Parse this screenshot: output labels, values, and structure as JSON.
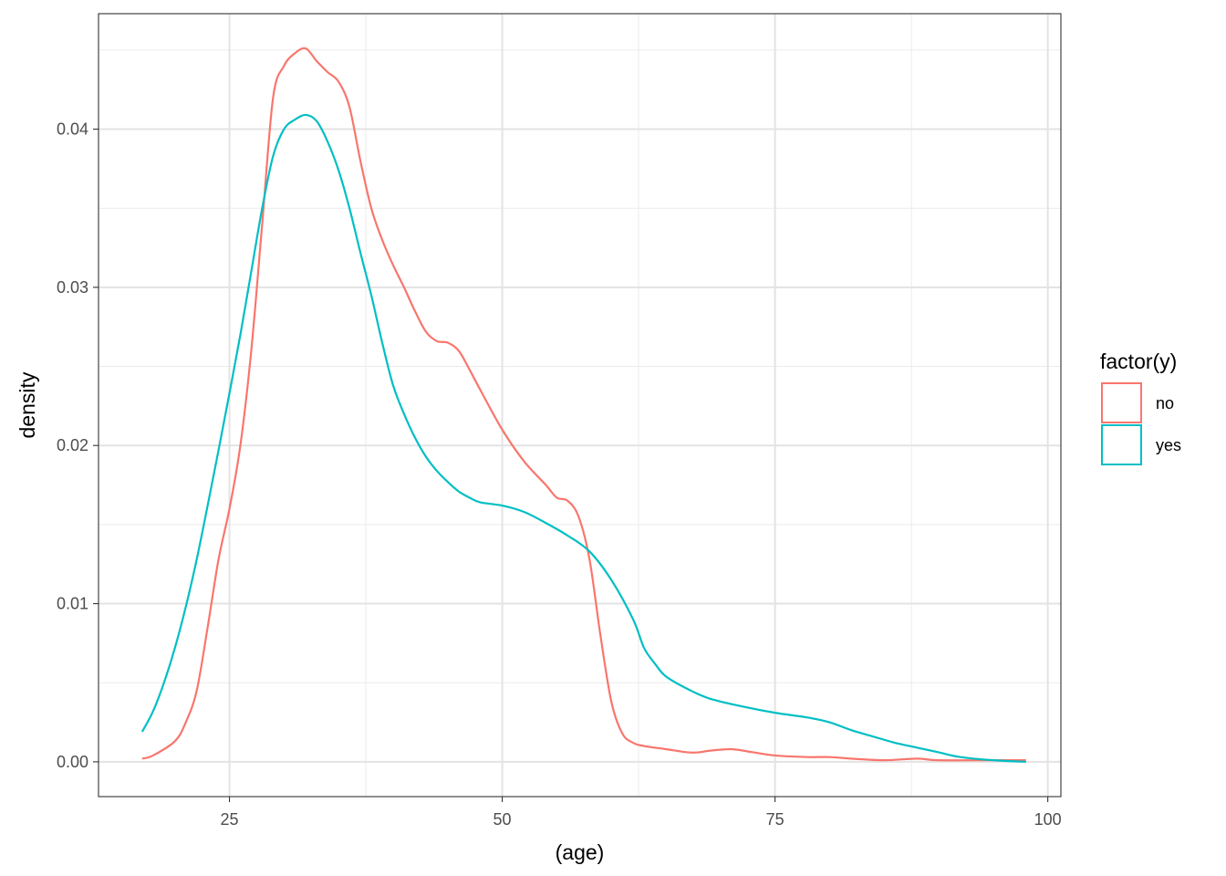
{
  "chart_data": {
    "type": "line",
    "title": "",
    "xlabel": "(age)",
    "ylabel": "density",
    "xlim": [
      13,
      101.2
    ],
    "ylim": [
      -0.0022,
      0.0473
    ],
    "x_ticks": [
      25,
      50,
      75,
      100
    ],
    "x_tick_labels": [
      "25",
      "50",
      "75",
      "100"
    ],
    "y_ticks": [
      0.0,
      0.01,
      0.02,
      0.03,
      0.04
    ],
    "y_tick_labels": [
      "0.00",
      "0.01",
      "0.02",
      "0.03",
      "0.04"
    ],
    "grid": true,
    "legend": {
      "title": "factor(y)",
      "position": "right"
    },
    "series": [
      {
        "name": "no",
        "color": "#F8766D",
        "x": [
          17,
          18,
          20,
          21,
          22,
          23,
          24,
          25,
          26,
          27,
          28,
          29,
          30,
          31,
          32,
          33,
          34,
          35,
          36,
          37,
          38,
          39,
          40,
          41,
          42,
          43,
          44,
          45,
          46,
          47,
          48,
          50,
          52,
          54,
          55,
          56,
          57,
          58,
          59,
          60,
          61,
          62,
          63,
          65,
          67,
          68,
          69,
          71,
          73,
          75,
          78,
          80,
          82,
          85,
          88,
          90,
          95,
          98
        ],
        "y": [
          0.0002,
          0.0004,
          0.0013,
          0.0025,
          0.0045,
          0.0085,
          0.0128,
          0.016,
          0.02,
          0.026,
          0.034,
          0.042,
          0.044,
          0.0448,
          0.0451,
          0.0443,
          0.0436,
          0.043,
          0.0414,
          0.038,
          0.035,
          0.033,
          0.0314,
          0.03,
          0.0285,
          0.0272,
          0.0266,
          0.0265,
          0.026,
          0.0248,
          0.0235,
          0.021,
          0.019,
          0.0175,
          0.0167,
          0.0165,
          0.0155,
          0.0128,
          0.008,
          0.0038,
          0.0018,
          0.0012,
          0.001,
          0.0008,
          0.0006,
          0.0006,
          0.0007,
          0.0008,
          0.0006,
          0.0004,
          0.0003,
          0.0003,
          0.0002,
          0.0001,
          0.0002,
          0.0001,
          0.0001,
          0.0001
        ]
      },
      {
        "name": "yes",
        "color": "#00BFC4",
        "x": [
          17,
          18,
          19,
          20,
          21,
          22,
          23,
          24,
          25,
          26,
          27,
          28,
          29,
          30,
          31,
          32,
          33,
          34,
          35,
          36,
          37,
          38,
          39,
          40,
          41,
          42,
          43,
          44,
          45,
          46,
          47,
          48,
          50,
          52,
          54,
          56,
          58,
          60,
          62,
          63,
          64,
          65,
          67,
          69,
          72,
          75,
          78,
          80,
          82,
          84,
          86,
          88,
          90,
          92,
          95,
          98
        ],
        "y": [
          0.0019,
          0.0032,
          0.005,
          0.0072,
          0.0098,
          0.0128,
          0.0162,
          0.0197,
          0.0233,
          0.027,
          0.031,
          0.035,
          0.0383,
          0.04,
          0.0406,
          0.0409,
          0.0405,
          0.0392,
          0.0374,
          0.035,
          0.0322,
          0.0295,
          0.0265,
          0.0238,
          0.022,
          0.0205,
          0.0193,
          0.0184,
          0.0177,
          0.0171,
          0.0167,
          0.0164,
          0.0162,
          0.0158,
          0.0151,
          0.0143,
          0.0133,
          0.0115,
          0.009,
          0.0072,
          0.0062,
          0.0054,
          0.0046,
          0.004,
          0.0035,
          0.0031,
          0.0028,
          0.0025,
          0.002,
          0.0016,
          0.0012,
          0.0009,
          0.0006,
          0.0003,
          0.0001,
          0.0
        ]
      }
    ]
  }
}
